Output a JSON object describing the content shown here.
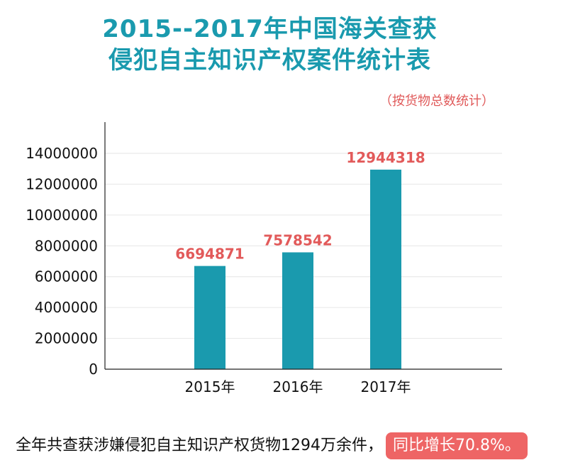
{
  "title_line1": "2015--2017年中国海关查获",
  "title_line2": "侵犯自主知识产权案件统计表",
  "note": "（按货物总数统计）",
  "footer": {
    "text": "全年共查获涉嫌侵犯自主知识产权货物1294万余件，",
    "highlight": "同比增长70.8%。"
  },
  "colors": {
    "bar": "#1a9aae",
    "title": "#1a9aae",
    "data_label": "#e25a5a",
    "badge": "#ee6565"
  },
  "chart_data": {
    "type": "bar",
    "categories": [
      "2015年",
      "2016年",
      "2017年"
    ],
    "values": [
      6694871,
      7578542,
      12944318
    ],
    "data_labels": [
      "6694871",
      "7578542",
      "12944318"
    ],
    "ylim": [
      0,
      14000000
    ],
    "yticks": [
      0,
      2000000,
      4000000,
      6000000,
      8000000,
      10000000,
      12000000,
      14000000
    ],
    "ytick_labels": [
      "0",
      "2000000",
      "4000000",
      "6000000",
      "8000000",
      "10000000",
      "12000000",
      "14000000"
    ],
    "grid": true,
    "xlabel": "",
    "ylabel": ""
  }
}
